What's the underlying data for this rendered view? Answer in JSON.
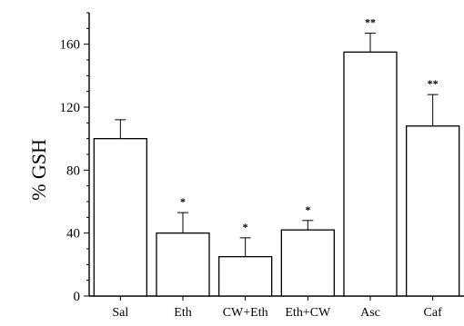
{
  "chart_data": {
    "type": "bar",
    "title": "",
    "xlabel": "",
    "ylabel": "% GSH",
    "ylim": [
      0,
      180
    ],
    "yticks": [
      0,
      40,
      80,
      120,
      160
    ],
    "categories": [
      "Sal",
      "Eth",
      "CW+Eth",
      "Eth+CW",
      "Asc",
      "Caf"
    ],
    "series": [
      {
        "values": [
          100,
          40,
          25,
          42,
          155,
          108
        ],
        "errors": [
          12,
          13,
          12,
          6,
          12,
          20
        ],
        "annotations": [
          "",
          "*",
          "*",
          "*",
          "**",
          "**"
        ]
      }
    ],
    "grid": false,
    "bar_fill": "#ffffff",
    "bar_stroke": "#000000"
  }
}
